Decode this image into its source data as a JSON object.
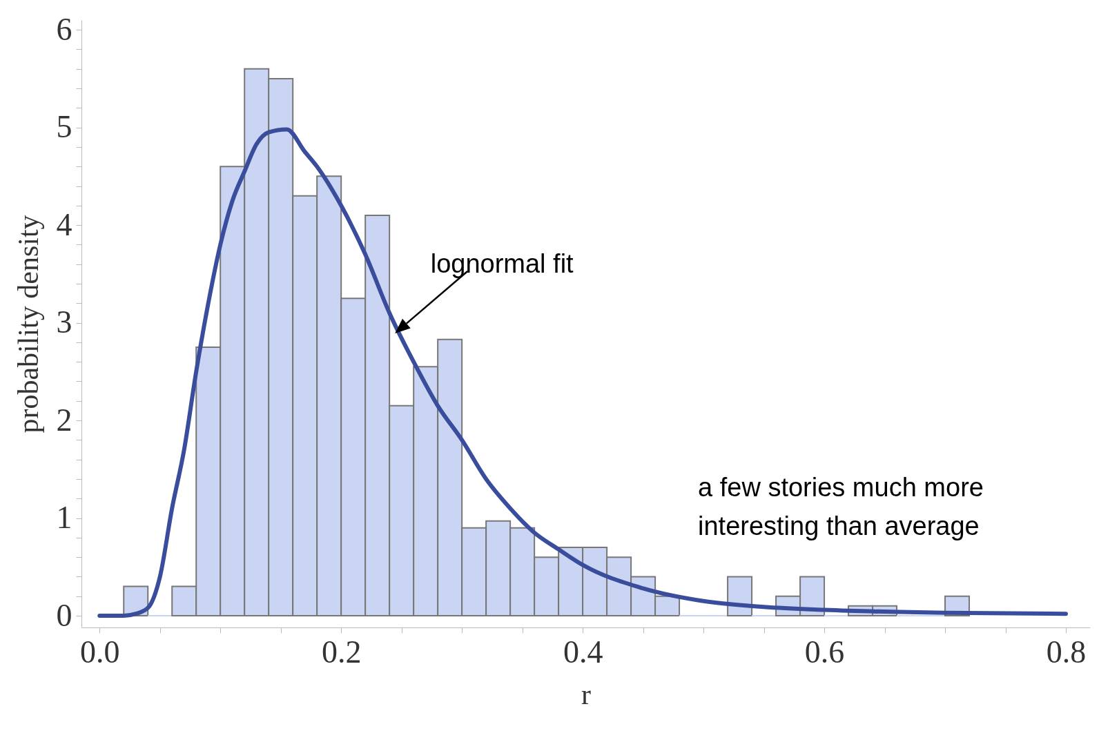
{
  "chart_data": {
    "type": "histogram",
    "xlabel": "r",
    "ylabel": "probability density",
    "bins": [
      0.02,
      0.04,
      0.06,
      0.08,
      0.1,
      0.12,
      0.14,
      0.16,
      0.18,
      0.2,
      0.22,
      0.24,
      0.26,
      0.28,
      0.3,
      0.32,
      0.34,
      0.36,
      0.38,
      0.4,
      0.42,
      0.44,
      0.46,
      0.48,
      0.5,
      0.52,
      0.54,
      0.56,
      0.58,
      0.6,
      0.62,
      0.64,
      0.66,
      0.68,
      0.7,
      0.72
    ],
    "values": [
      0.3,
      0,
      0.3,
      2.75,
      4.6,
      5.6,
      5.5,
      4.3,
      4.5,
      3.25,
      4.1,
      2.15,
      2.55,
      2.83,
      0.9,
      0.97,
      0.9,
      0.6,
      0.7,
      0.7,
      0.6,
      0.4,
      0.2,
      0,
      0,
      0.4,
      0,
      0.2,
      0.4,
      0,
      0.1,
      0.1,
      0,
      0,
      0.2
    ],
    "color": "#c9d5f2",
    "series": [
      {
        "type": "line",
        "color": "#3a4d9c",
        "x": [
          0,
          0.02,
          0.03,
          0.04,
          0.05,
          0.06,
          0.07,
          0.08,
          0.09,
          0.1,
          0.11,
          0.12,
          0.13,
          0.14,
          0.155,
          0.17,
          0.18,
          0.2,
          0.22,
          0.24,
          0.26,
          0.28,
          0.3,
          0.32,
          0.34,
          0.36,
          0.38,
          0.4,
          0.45,
          0.5,
          0.55,
          0.6,
          0.7,
          0.8
        ],
        "values": [
          0,
          0,
          0.02,
          0.08,
          0.4,
          1.1,
          1.7,
          2.5,
          3.2,
          3.8,
          4.25,
          4.55,
          4.83,
          4.95,
          4.98,
          4.75,
          4.6,
          4.2,
          3.7,
          3.1,
          2.6,
          2.15,
          1.8,
          1.4,
          1.1,
          0.85,
          0.68,
          0.52,
          0.28,
          0.15,
          0.09,
          0.06,
          0.03,
          0.02
        ]
      }
    ],
    "xlim": [
      -0.015,
      0.82
    ],
    "ylim": [
      -0.12,
      6.1
    ],
    "xticks": [
      {
        "value": 0,
        "label": "0.0"
      },
      {
        "value": 0.05,
        "label": null
      },
      {
        "value": 0.1,
        "label": null
      },
      {
        "value": 0.15,
        "label": null
      },
      0.2,
      {
        "value": 0.25,
        "label": null
      },
      {
        "value": 0.3,
        "label": null
      },
      {
        "value": 0.35,
        "label": null
      },
      0.4,
      {
        "value": 0.45,
        "label": null
      },
      {
        "value": 0.5,
        "label": null
      },
      {
        "value": 0.55,
        "label": null
      },
      0.6,
      {
        "value": 0.65,
        "label": null
      },
      {
        "value": 0.7,
        "label": null
      },
      {
        "value": 0.75,
        "label": null
      },
      0.8
    ],
    "yticks": [
      0,
      {
        "value": 0.2,
        "label": null
      },
      {
        "value": 0.4,
        "label": null
      },
      {
        "value": 0.6,
        "label": null
      },
      {
        "value": 0.8,
        "label": null
      },
      1,
      {
        "value": 1.2,
        "label": null
      },
      {
        "value": 1.4,
        "label": null
      },
      {
        "value": 1.6,
        "label": null
      },
      {
        "value": 1.8,
        "label": null
      },
      2,
      {
        "value": 2.2,
        "label": null
      },
      {
        "value": 2.4,
        "label": null
      },
      {
        "value": 2.6,
        "label": null
      },
      {
        "value": 2.8,
        "label": null
      },
      3,
      {
        "value": 3.2,
        "label": null
      },
      {
        "value": 3.4,
        "label": null
      },
      {
        "value": 3.6,
        "label": null
      },
      {
        "value": 3.8,
        "label": null
      },
      4,
      {
        "value": 4.2,
        "label": null
      },
      {
        "value": 4.4,
        "label": null
      },
      {
        "value": 4.6,
        "label": null
      },
      {
        "value": 4.8,
        "label": null
      },
      5,
      {
        "value": 5.2,
        "label": null
      },
      {
        "value": 5.4,
        "label": null
      },
      {
        "value": 5.6,
        "label": null
      },
      {
        "value": 5.8,
        "label": null
      },
      6
    ],
    "grid": false,
    "annotations": [
      {
        "text": "lognormal fit",
        "x": 0.256,
        "y": 2.75
      },
      "a few stories much more\ninteresting than average"
    ]
  }
}
